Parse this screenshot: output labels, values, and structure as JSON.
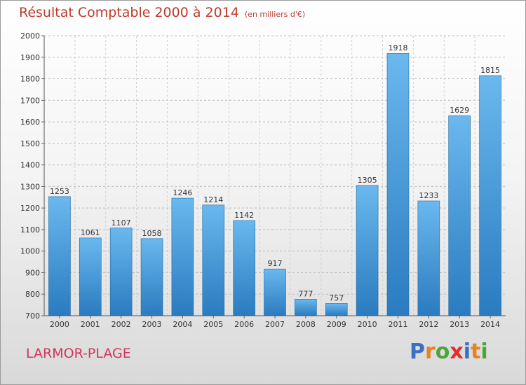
{
  "title": "Résultat Comptable 2000 à 2014",
  "subtitle": "(en milliers d'€)",
  "commune": "LARMOR-PLAGE",
  "brand": {
    "letters": [
      "P",
      "r",
      "o",
      "x",
      "i",
      "t",
      "i"
    ],
    "colors": [
      "#3b6fc4",
      "#e8821e",
      "#4aa63a",
      "#e1302e",
      "#3b6fc4",
      "#e8821e",
      "#4aa63a"
    ]
  },
  "colors": {
    "bar_light": "#6ab8ee",
    "bar_dark": "#2a7bc0",
    "title": "#c0392b",
    "commune": "#d1355a"
  },
  "chart_data": {
    "type": "bar",
    "categories": [
      "2000",
      "2001",
      "2002",
      "2003",
      "2004",
      "2005",
      "2006",
      "2007",
      "2008",
      "2009",
      "2010",
      "2011",
      "2012",
      "2013",
      "2014"
    ],
    "values": [
      1253,
      1061,
      1107,
      1058,
      1246,
      1214,
      1142,
      917,
      777,
      757,
      1305,
      1918,
      1233,
      1629,
      1815
    ],
    "labels": [
      "1253",
      "1061",
      "1107",
      "1058",
      "1246",
      "1214",
      "1142",
      "917",
      "777",
      "757",
      "1305",
      "1918",
      "1233",
      "1629",
      "1815"
    ],
    "yticks": [
      "700",
      "800",
      "900",
      "1000",
      "1100",
      "1200",
      "1300",
      "1400",
      "1500",
      "1600",
      "1700",
      "1800",
      "1900",
      "2000"
    ],
    "ylim": [
      700,
      2000
    ],
    "grid": true
  }
}
